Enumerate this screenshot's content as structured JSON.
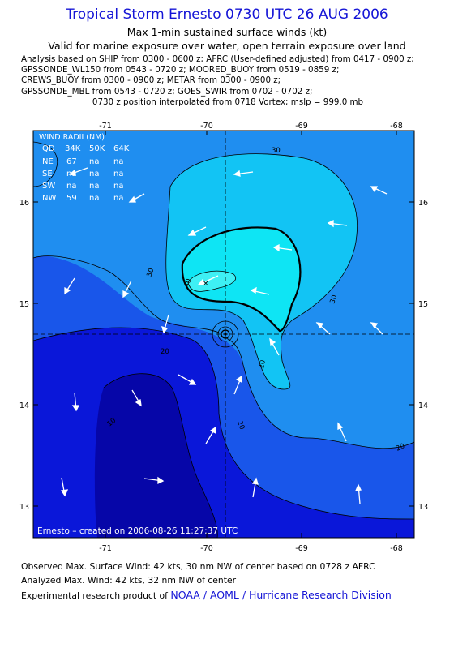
{
  "header": {
    "title": "Tropical Storm Ernesto 0730 UTC 26 AUG 2006",
    "subtitle1": "Max 1-min sustained surface winds (kt)",
    "subtitle2": "Valid for marine exposure over water, open terrain exposure over land"
  },
  "analysis_lines": [
    "Analysis based on  SHIP from 0300 - 0600 z;  AFRC (User-defined adjusted) from 0417 - 0900 z;",
    "GPSSONDE_WL150 from 0543 - 0720 z;  MOORED_BUOY from 0519 - 0859 z;",
    "CREWS_BUOY from 0300 - 0900 z;  METAR from 0300 - 0900 z;",
    "GPSSONDE_MBL from 0543 - 0720 z;  GOES_SWIR from 0702 - 0702 z;"
  ],
  "position_line": "0730 z position interpolated from 0718 Vortex; mslp = 999.0 mb",
  "map": {
    "lon_ticks": [
      "-71",
      "-70",
      "-69",
      "-68"
    ],
    "lat_ticks": [
      "16",
      "15",
      "14",
      "13"
    ],
    "contour_labels": [
      "30",
      "40",
      "30",
      "30",
      "20",
      "20",
      "10",
      "20",
      "20"
    ],
    "storm_symbol": "hurricane-center",
    "created_label": "Ernesto – created on 2006-08-26  11:27:37 UTC",
    "colors": {
      "band_10": "#0a17d9",
      "band_20": "#1956ea",
      "band_30": "#1f8ef0",
      "band_40": "#12c4f4",
      "band_inner": "#0ee5f4",
      "band_lt10": "#0606a8"
    }
  },
  "wind_radii": {
    "title": "WIND RADII (NM)",
    "headers": [
      "QD",
      "34K",
      "50K",
      "64K"
    ],
    "rows": [
      [
        "NE",
        "67",
        "na",
        "na"
      ],
      [
        "SE",
        "na",
        "na",
        "na"
      ],
      [
        "SW",
        "na",
        "na",
        "na"
      ],
      [
        "NW",
        "59",
        "na",
        "na"
      ]
    ]
  },
  "footer": {
    "observed": "Observed Max. Surface Wind: 42 kts, 30 nm NW of center based on 0728 z AFRC",
    "analyzed": "Analyzed Max. Wind: 42 kts, 32 nm NW of center",
    "experimental_prefix": "Experimental research product of",
    "experimental_link": "NOAA / AOML / Hurricane Research Division"
  }
}
